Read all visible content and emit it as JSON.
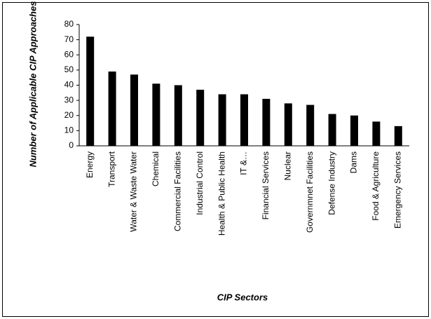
{
  "chart_data": {
    "type": "bar",
    "x_label": "CIP Sectors",
    "y_label": "Number of Applicable CIP Approaches",
    "categories": [
      "Energy",
      "Transport",
      "Water & Waste Water",
      "Chemical",
      "Commercial Facilities",
      "Industrial Control",
      "Health & Public Health",
      "IT &…",
      "Financial Services",
      "Nuclear",
      "Governmnet Facilities",
      "Defense Industry",
      "Dams",
      "Food & Agriculture",
      "Emergency Services"
    ],
    "values": [
      72,
      49,
      47,
      41,
      40,
      37,
      34,
      34,
      31,
      28,
      27,
      21,
      20,
      16,
      13
    ],
    "color": "#000000",
    "ylim": [
      0,
      80
    ],
    "yticks": [
      0,
      10,
      20,
      30,
      40,
      50,
      60,
      70,
      80
    ],
    "grid": false
  }
}
